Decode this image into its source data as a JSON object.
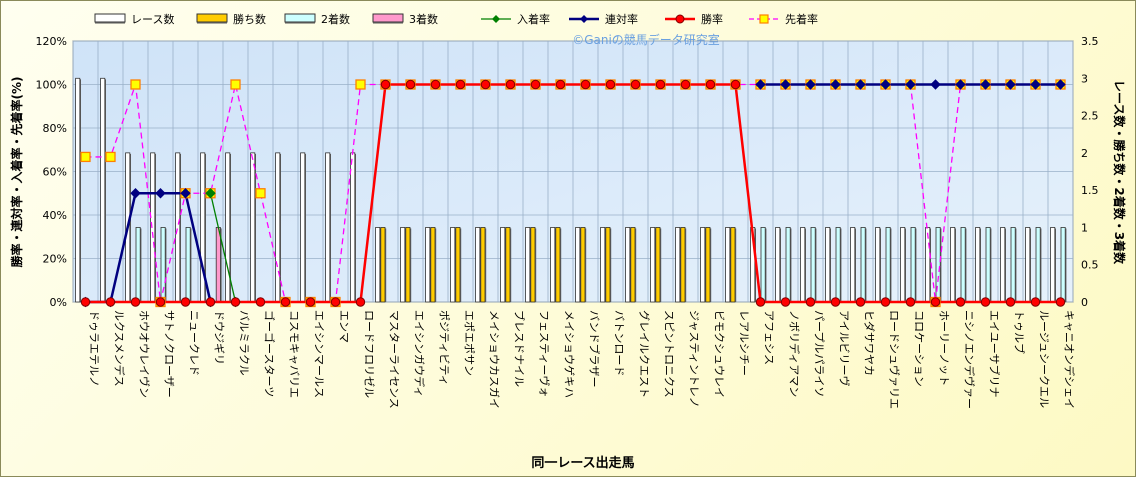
{
  "chart_data": {
    "type": "bar",
    "title": "",
    "watermark": "©Ganiの競馬データ研究室",
    "xlabel": "同一レース出走馬",
    "ylabel_left": "勝率・連対率・入着率・先着率(%)",
    "ylabel_right": "レース数・勝ち数・2着数・3着数",
    "ylim_left": [
      0,
      120
    ],
    "ylim_right": [
      0,
      3.5
    ],
    "yticks_left": [
      "0%",
      "20%",
      "40%",
      "60%",
      "80%",
      "100%",
      "120%"
    ],
    "yticks_right": [
      "0",
      "0.5",
      "1",
      "1.5",
      "2",
      "2.5",
      "3",
      "3.5"
    ],
    "grid": true,
    "legend_position": "top",
    "categories": [
      "ドゥラエテルノ",
      "ルクスメンデス",
      "ホウオウレイヴン",
      "サトノクローザー",
      "ニュークレド",
      "ドウジギリ",
      "バルミラクル",
      "ゴーゴースターツ",
      "コスモキャバリエ",
      "エイシンマールス",
      "エンマ",
      "ロードフロリゼル",
      "マスターライセンス",
      "エイシンガウディ",
      "ポジティビティ",
      "エポエポサン",
      "メイショウカスガイ",
      "ブレスドナイル",
      "フェスティーヴォ",
      "メイショウゲキハ",
      "バンドブラザー",
      "バトンロード",
      "グレイルクエスト",
      "スピントロニクス",
      "ジャスティントレノ",
      "ビモクシュウレイ",
      "レアルシチー",
      "アフェシス",
      "ノボリディアマン",
      "パープルパライソ",
      "アイルビリーヴ",
      "ヒダサワヤカ",
      "ロードシュヴァリエ",
      "コロケーション",
      "ホーリーノット",
      "ニシノエンデヴァー",
      "エイユーサブリナ",
      "トゥルブ",
      "ルージュシークエル",
      "キャニオンデシェイ"
    ],
    "series": [
      {
        "name": "レース数",
        "kind": "bar",
        "axis": "right",
        "color": "#ffffff",
        "values": [
          3,
          3,
          2,
          2,
          2,
          2,
          2,
          2,
          2,
          2,
          2,
          2,
          1,
          1,
          1,
          1,
          1,
          1,
          1,
          1,
          1,
          1,
          1,
          1,
          1,
          1,
          1,
          1,
          1,
          1,
          1,
          1,
          1,
          1,
          1,
          1,
          1,
          1,
          1,
          1
        ]
      },
      {
        "name": "勝ち数",
        "kind": "bar",
        "axis": "right",
        "color": "#ffcc00",
        "values": [
          0,
          0,
          0,
          0,
          0,
          0,
          0,
          0,
          0,
          0,
          0,
          0,
          1,
          1,
          1,
          1,
          1,
          1,
          1,
          1,
          1,
          1,
          1,
          1,
          1,
          1,
          1,
          0,
          0,
          0,
          0,
          0,
          0,
          0,
          0,
          0,
          0,
          0,
          0,
          0
        ]
      },
      {
        "name": "2着数",
        "kind": "bar",
        "axis": "right",
        "color": "#ccffff",
        "values": [
          0,
          0,
          1,
          1,
          1,
          0,
          0,
          0,
          0,
          0,
          0,
          0,
          0,
          0,
          0,
          0,
          0,
          0,
          0,
          0,
          0,
          0,
          0,
          0,
          0,
          0,
          0,
          1,
          1,
          1,
          1,
          1,
          1,
          1,
          1,
          1,
          1,
          1,
          1,
          1
        ]
      },
      {
        "name": "3着数",
        "kind": "bar",
        "axis": "right",
        "color": "#ff99cc",
        "values": [
          0,
          0,
          0,
          0,
          0,
          1,
          0,
          0,
          0,
          0,
          0,
          0,
          0,
          0,
          0,
          0,
          0,
          0,
          0,
          0,
          0,
          0,
          0,
          0,
          0,
          0,
          0,
          0,
          0,
          0,
          0,
          0,
          0,
          0,
          0,
          0,
          0,
          0,
          0,
          0
        ]
      },
      {
        "name": "入着率",
        "kind": "line",
        "axis": "left",
        "color": "#008000",
        "marker": "diamond",
        "values": [
          null,
          null,
          null,
          null,
          null,
          50,
          0,
          null,
          null,
          null,
          null,
          null,
          null,
          null,
          null,
          null,
          null,
          null,
          null,
          null,
          null,
          null,
          null,
          null,
          null,
          null,
          null,
          null,
          null,
          null,
          null,
          null,
          null,
          null,
          null,
          null,
          null,
          null,
          null,
          null
        ]
      },
      {
        "name": "連対率",
        "kind": "line",
        "axis": "left",
        "color": "#000080",
        "marker": "diamond",
        "values": [
          0,
          0,
          50,
          50,
          50,
          0,
          null,
          null,
          null,
          null,
          null,
          null,
          null,
          null,
          null,
          null,
          null,
          null,
          null,
          null,
          null,
          null,
          null,
          null,
          null,
          null,
          null,
          100,
          100,
          100,
          100,
          100,
          100,
          100,
          100,
          100,
          100,
          100,
          100,
          100
        ]
      },
      {
        "name": "勝率",
        "kind": "line",
        "axis": "left",
        "color": "#ff0000",
        "marker": "circle",
        "values": [
          0,
          0,
          0,
          0,
          0,
          0,
          0,
          0,
          0,
          0,
          0,
          0,
          100,
          100,
          100,
          100,
          100,
          100,
          100,
          100,
          100,
          100,
          100,
          100,
          100,
          100,
          100,
          0,
          0,
          0,
          0,
          0,
          0,
          0,
          0,
          0,
          0,
          0,
          0,
          0
        ]
      },
      {
        "name": "先着率",
        "kind": "line",
        "axis": "left",
        "color": "#ff00ff",
        "dash": true,
        "marker": "square",
        "values": [
          66.7,
          66.7,
          100,
          0,
          50,
          50,
          100,
          50,
          0,
          0,
          0,
          100,
          100,
          100,
          100,
          100,
          100,
          100,
          100,
          100,
          100,
          100,
          100,
          100,
          100,
          100,
          100,
          100,
          100,
          100,
          100,
          100,
          100,
          100,
          0,
          100,
          100,
          100,
          100,
          100
        ]
      }
    ]
  }
}
